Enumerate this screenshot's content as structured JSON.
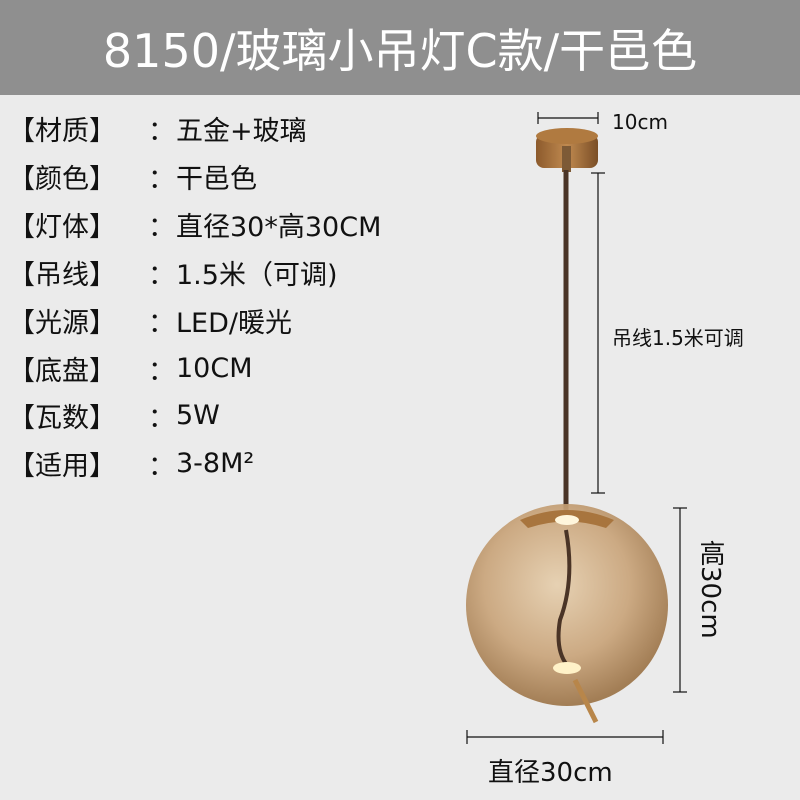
{
  "title": "8150/玻璃小吊灯C款/干邑色",
  "colors": {
    "header_bg": "#8f8f8f",
    "background": "#ebebeb",
    "glass": "#c9a47a",
    "brass": "#a8753e"
  },
  "specs": [
    {
      "label": "【材质】",
      "colon": "：",
      "value": "五金+玻璃"
    },
    {
      "label": "【颜色】",
      "colon": "：",
      "value": "干邑色"
    },
    {
      "label": "【灯体】",
      "colon": "：",
      "value": "直径30*高30CM"
    },
    {
      "label": "【吊线】",
      "colon": "：",
      "value": "1.5米（可调)"
    },
    {
      "label": "【光源】",
      "colon": "：",
      "value": "LED/暖光"
    },
    {
      "label": "【底盘】",
      "colon": "：",
      "value": "10CM"
    },
    {
      "label": "【瓦数】",
      "colon": "：",
      "value": "5W"
    },
    {
      "label": "【适用】",
      "colon": "：",
      "value": "3-8M²"
    }
  ],
  "dimensions": {
    "canopy": "10cm",
    "cord": "吊线1.5米可调",
    "height": "高30cm",
    "diameter": "直径30cm"
  }
}
